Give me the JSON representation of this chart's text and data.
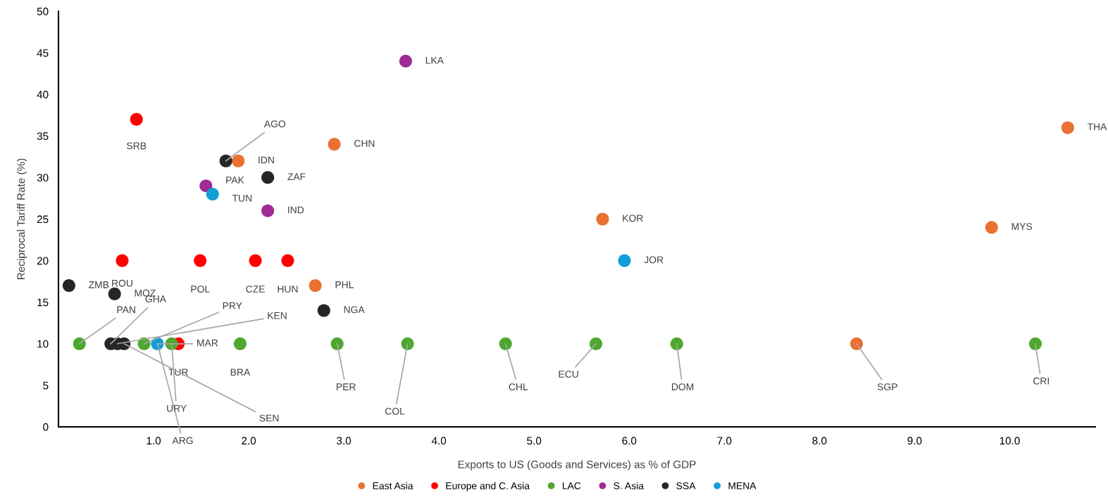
{
  "chart_data": {
    "type": "scatter",
    "xlabel": "Exports to US (Goods and Services) as % of GDP",
    "ylabel": "Reciprocal Tariff Rate (%)",
    "xlim": [
      0,
      10.9
    ],
    "xticks": [
      {
        "value": 1,
        "label": "1.0"
      },
      {
        "value": 2,
        "label": "2.0"
      },
      {
        "value": 3,
        "label": "3.0"
      },
      {
        "value": 4,
        "label": "4.0"
      },
      {
        "value": 5,
        "label": "5.0"
      },
      {
        "value": 6,
        "label": "6.0"
      },
      {
        "value": 7,
        "label": "7.0"
      },
      {
        "value": 8,
        "label": "8.0"
      },
      {
        "value": 9,
        "label": "9.0"
      },
      {
        "value": 10,
        "label": "10.0"
      }
    ],
    "ylim": [
      0,
      50
    ],
    "yticks": [
      0,
      5,
      10,
      15,
      20,
      25,
      30,
      35,
      40,
      45,
      50
    ],
    "grid": false,
    "legend": "bottom",
    "marker": "circle",
    "series": [
      {
        "name": "East Asia",
        "color": "#e97132",
        "x": [
          2.9,
          1.89,
          10.61,
          5.72,
          9.81,
          2.7,
          8.39
        ],
        "values": [
          34,
          32,
          36,
          25,
          24,
          17,
          10
        ]
      },
      {
        "name": "Europe and C. Asia",
        "color": "#ff0000",
        "x": [
          0.82,
          0.67,
          1.49,
          2.07,
          2.41,
          1.26
        ],
        "values": [
          37,
          20,
          20,
          20,
          20,
          10
        ]
      },
      {
        "name": "LAC",
        "color": "#4ea72e",
        "x": [
          0.22,
          0.9,
          1.0,
          1.19,
          1.91,
          2.93,
          3.67,
          4.7,
          5.65,
          6.5,
          10.27
        ],
        "values": [
          10,
          10,
          null,
          10,
          10,
          10,
          10,
          10,
          10,
          10,
          10
        ]
      },
      {
        "name": "S. Asia",
        "color": "#a02b93",
        "x": [
          3.65,
          1.55,
          2.2
        ],
        "values": [
          44,
          29,
          26
        ]
      },
      {
        "name": "SSA",
        "color": "#262626",
        "x": [
          0.11,
          0.59,
          1.76,
          2.2,
          2.79,
          0.55,
          0.62,
          0.69
        ],
        "values": [
          17,
          16,
          32,
          30,
          14,
          10,
          10,
          10
        ]
      },
      {
        "name": "MENA",
        "color": "#0f9ed5",
        "x": [
          1.62,
          5.95,
          1.04
        ],
        "values": [
          28,
          20,
          10
        ]
      }
    ],
    "annotations": [
      {
        "text": "CHN",
        "x": 2.9,
        "y": 34
      },
      {
        "text": "IDN",
        "x": 1.89,
        "y": 32
      },
      {
        "text": "THA",
        "x": 10.61,
        "y": 36
      },
      {
        "text": "KOR",
        "x": 5.72,
        "y": 25
      },
      {
        "text": "MYS",
        "x": 9.81,
        "y": 24
      },
      {
        "text": "PHL",
        "x": 2.7,
        "y": 17
      },
      {
        "text": "SGP",
        "x": 8.39,
        "y": 10
      },
      {
        "text": "SRB",
        "x": 0.82,
        "y": 37
      },
      {
        "text": "ROU",
        "x": 0.67,
        "y": 20
      },
      {
        "text": "POL",
        "x": 1.49,
        "y": 20
      },
      {
        "text": "CZE",
        "x": 2.07,
        "y": 20
      },
      {
        "text": "HUN",
        "x": 2.41,
        "y": 20
      },
      {
        "text": "TUR",
        "x": 1.26,
        "y": 10
      },
      {
        "text": "PAN",
        "x": 0.22,
        "y": 10
      },
      {
        "text": "PRY",
        "x": 0.9,
        "y": 10
      },
      {
        "text": "ARG",
        "x": 1.04,
        "y": 10
      },
      {
        "text": "URY",
        "x": 1.19,
        "y": 10
      },
      {
        "text": "BRA",
        "x": 1.91,
        "y": 10
      },
      {
        "text": "PER",
        "x": 2.93,
        "y": 10
      },
      {
        "text": "COL",
        "x": 3.67,
        "y": 10
      },
      {
        "text": "CHL",
        "x": 4.7,
        "y": 10
      },
      {
        "text": "ECU",
        "x": 5.65,
        "y": 10
      },
      {
        "text": "DOM",
        "x": 6.5,
        "y": 10
      },
      {
        "text": "CRI",
        "x": 10.27,
        "y": 10
      },
      {
        "text": "LKA",
        "x": 3.65,
        "y": 44
      },
      {
        "text": "PAK",
        "x": 1.55,
        "y": 29
      },
      {
        "text": "IND",
        "x": 2.2,
        "y": 26
      },
      {
        "text": "ZMB",
        "x": 0.11,
        "y": 17
      },
      {
        "text": "MOZ",
        "x": 0.59,
        "y": 16
      },
      {
        "text": "AGO",
        "x": 1.76,
        "y": 32
      },
      {
        "text": "ZAF",
        "x": 2.2,
        "y": 30
      },
      {
        "text": "NGA",
        "x": 2.79,
        "y": 14
      },
      {
        "text": "GHA",
        "x": 0.55,
        "y": 10
      },
      {
        "text": "KEN",
        "x": 0.62,
        "y": 10
      },
      {
        "text": "SEN",
        "x": 0.69,
        "y": 10
      },
      {
        "text": "TUN",
        "x": 1.62,
        "y": 28
      },
      {
        "text": "JOR",
        "x": 5.95,
        "y": 20
      },
      {
        "text": "MAR",
        "x": 1.04,
        "y": 10
      }
    ]
  }
}
